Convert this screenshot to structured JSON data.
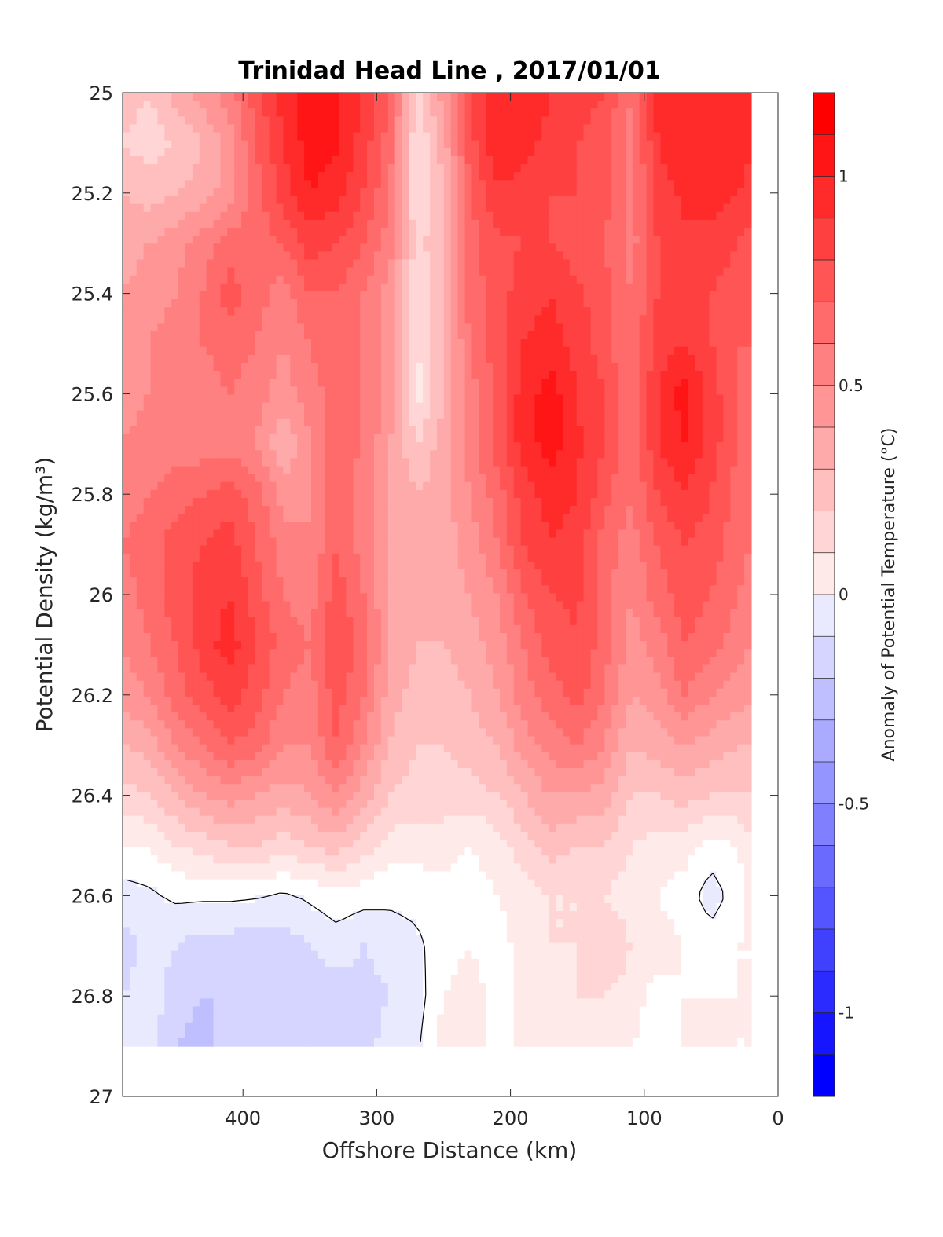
{
  "chart_data": {
    "type": "heatmap",
    "title": "Trinidad Head Line , 2017/01/01",
    "xlabel": "Offshore Distance (km)",
    "ylabel": "Potential Density (kg/m³)",
    "xlim": [
      490,
      0
    ],
    "ylim": [
      25,
      27
    ],
    "xticks": [
      400,
      300,
      200,
      100,
      0
    ],
    "yticks": [
      25,
      25.2,
      25.4,
      25.6,
      25.8,
      26,
      26.2,
      26.4,
      26.6,
      26.8,
      27
    ],
    "colorbar": {
      "label": "Anomaly of Potential Temperature (°C)",
      "ticks": [
        1,
        0.5,
        0,
        -0.5,
        -1
      ],
      "range": [
        -1.2,
        1.2
      ],
      "levels": [
        -1.2,
        -1.1,
        -1.0,
        -0.9,
        -0.8,
        -0.7,
        -0.6,
        -0.5,
        -0.4,
        -0.3,
        -0.2,
        -0.1,
        0,
        0.1,
        0.2,
        0.3,
        0.4,
        0.5,
        0.6,
        0.7,
        0.8,
        0.9,
        1.0,
        1.1,
        1.2
      ],
      "colors": [
        "#0000ff",
        "#1515ff",
        "#2b2bff",
        "#4040ff",
        "#5555ff",
        "#6a6aff",
        "#8080ff",
        "#9595ff",
        "#aaaaff",
        "#bfbfff",
        "#d5d5ff",
        "#eaeaff",
        "#ffffff",
        "#ffeaea",
        "#ffd5d5",
        "#ffbfbf",
        "#ffaaaa",
        "#ff9595",
        "#ff8080",
        "#ff6a6a",
        "#ff5555",
        "#ff4040",
        "#ff2b2b",
        "#ff1515",
        "#ff0000"
      ]
    },
    "data_extent": {
      "x": [
        490,
        20
      ],
      "y": [
        25,
        26.9
      ]
    },
    "x": [
      490,
      470,
      450,
      430,
      410,
      390,
      370,
      350,
      330,
      310,
      290,
      270,
      250,
      230,
      210,
      190,
      170,
      150,
      130,
      110,
      90,
      70,
      50,
      30,
      20
    ],
    "y": [
      25.0,
      25.1,
      25.2,
      25.3,
      25.4,
      25.5,
      25.6,
      25.7,
      25.8,
      25.9,
      26.0,
      26.1,
      26.2,
      26.3,
      26.4,
      26.5,
      26.6,
      26.7,
      26.8,
      26.9
    ],
    "z": [
      [
        0.35,
        0.3,
        0.45,
        0.55,
        0.65,
        0.85,
        1.05,
        1.15,
        1.12,
        1.0,
        0.8,
        0.25,
        0.55,
        0.9,
        1.08,
        1.1,
        1.0,
        0.95,
        0.9,
        0.7,
        1.05,
        1.1,
        1.1,
        1.1,
        1.05
      ],
      [
        0.3,
        0.25,
        0.3,
        0.4,
        0.55,
        0.8,
        1.0,
        1.15,
        1.12,
        0.95,
        0.75,
        0.2,
        0.45,
        0.85,
        1.1,
        1.05,
        0.95,
        0.9,
        0.85,
        0.65,
        1.0,
        1.08,
        1.1,
        1.08,
        1.0
      ],
      [
        0.4,
        0.35,
        0.4,
        0.45,
        0.55,
        0.75,
        0.95,
        1.1,
        1.05,
        0.9,
        0.7,
        0.2,
        0.4,
        0.8,
        0.98,
        0.95,
        0.9,
        0.9,
        0.85,
        0.65,
        0.95,
        1.02,
        1.05,
        1.0,
        0.95
      ],
      [
        0.45,
        0.5,
        0.55,
        0.65,
        0.75,
        0.75,
        0.8,
        0.95,
        0.9,
        0.8,
        0.65,
        0.25,
        0.4,
        0.75,
        0.88,
        0.9,
        0.9,
        0.85,
        0.8,
        0.65,
        0.9,
        0.98,
        0.95,
        0.9,
        0.85
      ],
      [
        0.5,
        0.55,
        0.6,
        0.7,
        0.85,
        0.75,
        0.65,
        0.8,
        0.8,
        0.7,
        0.55,
        0.2,
        0.4,
        0.75,
        0.85,
        0.95,
        1.0,
        0.92,
        0.85,
        0.7,
        0.9,
        0.95,
        0.9,
        0.85,
        0.8
      ],
      [
        0.55,
        0.6,
        0.65,
        0.7,
        0.75,
        0.7,
        0.6,
        0.7,
        0.8,
        0.7,
        0.55,
        0.2,
        0.4,
        0.7,
        0.85,
        1.0,
        1.05,
        0.95,
        0.85,
        0.7,
        0.95,
        1.0,
        0.9,
        0.8,
        0.8
      ],
      [
        0.55,
        0.6,
        0.65,
        0.65,
        0.7,
        0.65,
        0.55,
        0.65,
        0.75,
        0.7,
        0.55,
        0.15,
        0.4,
        0.65,
        0.85,
        1.05,
        1.15,
        1.0,
        0.9,
        0.7,
        1.0,
        1.15,
        0.95,
        0.8,
        0.75
      ],
      [
        0.6,
        0.65,
        0.65,
        0.65,
        0.65,
        0.6,
        0.4,
        0.6,
        0.75,
        0.7,
        0.5,
        0.3,
        0.45,
        0.65,
        0.85,
        1.05,
        1.15,
        1.02,
        0.9,
        0.7,
        1.0,
        1.1,
        0.95,
        0.8,
        0.7
      ],
      [
        0.65,
        0.7,
        0.75,
        0.8,
        0.85,
        0.75,
        0.55,
        0.6,
        0.75,
        0.65,
        0.5,
        0.4,
        0.45,
        0.6,
        0.75,
        0.95,
        1.05,
        1.0,
        0.85,
        0.7,
        0.9,
        1.0,
        0.9,
        0.75,
        0.7
      ],
      [
        0.7,
        0.75,
        0.85,
        0.9,
        0.95,
        0.8,
        0.65,
        0.6,
        0.8,
        0.65,
        0.5,
        0.4,
        0.45,
        0.55,
        0.7,
        0.9,
        1.0,
        0.95,
        0.75,
        0.65,
        0.8,
        0.9,
        0.85,
        0.75,
        0.7
      ],
      [
        0.65,
        0.75,
        0.85,
        0.95,
        1.0,
        0.85,
        0.7,
        0.65,
        0.85,
        0.7,
        0.5,
        0.4,
        0.45,
        0.5,
        0.6,
        0.8,
        0.9,
        0.92,
        0.75,
        0.6,
        0.75,
        0.85,
        0.8,
        0.7,
        0.65
      ],
      [
        0.6,
        0.7,
        0.8,
        0.95,
        1.05,
        0.9,
        0.75,
        0.7,
        0.9,
        0.75,
        0.5,
        0.4,
        0.4,
        0.45,
        0.55,
        0.7,
        0.85,
        0.9,
        0.75,
        0.55,
        0.65,
        0.8,
        0.75,
        0.65,
        0.6
      ],
      [
        0.55,
        0.6,
        0.75,
        0.85,
        0.95,
        0.85,
        0.7,
        0.65,
        0.85,
        0.7,
        0.45,
        0.35,
        0.35,
        0.4,
        0.5,
        0.65,
        0.75,
        0.85,
        0.7,
        0.5,
        0.55,
        0.7,
        0.6,
        0.55,
        0.5
      ],
      [
        0.4,
        0.45,
        0.6,
        0.7,
        0.8,
        0.75,
        0.6,
        0.6,
        0.8,
        0.6,
        0.4,
        0.3,
        0.3,
        0.35,
        0.4,
        0.55,
        0.65,
        0.7,
        0.6,
        0.4,
        0.45,
        0.5,
        0.45,
        0.4,
        0.4
      ],
      [
        0.25,
        0.3,
        0.4,
        0.5,
        0.55,
        0.5,
        0.45,
        0.5,
        0.6,
        0.45,
        0.3,
        0.25,
        0.25,
        0.25,
        0.3,
        0.4,
        0.5,
        0.5,
        0.45,
        0.3,
        0.3,
        0.35,
        0.3,
        0.3,
        0.3
      ],
      [
        0.1,
        0.1,
        0.2,
        0.25,
        0.3,
        0.3,
        0.25,
        0.3,
        0.35,
        0.25,
        0.15,
        0.15,
        0.15,
        0.1,
        0.15,
        0.25,
        0.35,
        0.3,
        0.3,
        0.2,
        0.15,
        0.15,
        0.05,
        0.1,
        0.2
      ],
      [
        -0.05,
        -0.02,
        0.02,
        0.02,
        0.02,
        0.01,
        -0.02,
        0.02,
        0.06,
        0.04,
        0.02,
        0.03,
        0.05,
        0.05,
        0.1,
        0.15,
        0.2,
        0.2,
        0.2,
        0.15,
        0.1,
        0.05,
        -0.05,
        0.05,
        0.15
      ],
      [
        -0.15,
        -0.05,
        -0.1,
        -0.15,
        -0.15,
        -0.15,
        -0.15,
        -0.1,
        -0.05,
        -0.1,
        -0.05,
        -0.02,
        0.05,
        0.1,
        0.05,
        0.15,
        0.2,
        0.2,
        0.3,
        0.2,
        0.15,
        0.1,
        0.05,
        0.1,
        0.1
      ],
      [
        -0.1,
        -0.05,
        -0.15,
        -0.2,
        -0.2,
        -0.2,
        -0.2,
        -0.15,
        -0.15,
        -0.15,
        -0.1,
        -0.05,
        0.1,
        0.15,
        0.05,
        0.15,
        0.15,
        0.2,
        0.2,
        0.15,
        0.05,
        0.1,
        0.1,
        0.1,
        0.1
      ],
      [
        -0.05,
        -0.05,
        -0.2,
        -0.25,
        -0.15,
        -0.1,
        -0.15,
        -0.15,
        -0.15,
        -0.15,
        -0.05,
        -0.02,
        0.15,
        0.2,
        0.05,
        0.15,
        0.15,
        0.15,
        0.15,
        0.1,
        0.05,
        0.1,
        0.15,
        0.1,
        0.1
      ]
    ]
  }
}
